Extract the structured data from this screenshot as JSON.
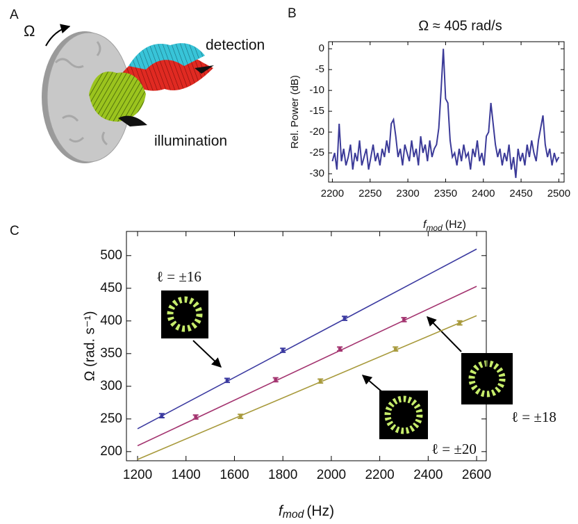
{
  "panel_a": {
    "label": "A",
    "omega": "Ω",
    "detection": "detection",
    "illumination": "illumination"
  },
  "chart_data": [
    {
      "type": "line",
      "panel": "B",
      "title": "Ω ≈ 405 rad/s",
      "ylabel": "Rel. Power (dB)",
      "xlabel": {
        "symbol": "f",
        "subscript": "mod",
        "unit": "(Hz)"
      },
      "color": "#3b3a98",
      "x": [
        2200,
        2203,
        2206,
        2209,
        2212,
        2215,
        2218,
        2221,
        2224,
        2227,
        2230,
        2233,
        2236,
        2239,
        2242,
        2245,
        2248,
        2251,
        2254,
        2257,
        2260,
        2263,
        2266,
        2269,
        2272,
        2275,
        2278,
        2281,
        2284,
        2287,
        2290,
        2293,
        2296,
        2299,
        2302,
        2305,
        2308,
        2311,
        2314,
        2317,
        2320,
        2323,
        2326,
        2329,
        2332,
        2335,
        2338,
        2341,
        2344,
        2347,
        2350,
        2353,
        2356,
        2359,
        2362,
        2365,
        2368,
        2371,
        2374,
        2377,
        2380,
        2383,
        2386,
        2389,
        2392,
        2395,
        2398,
        2401,
        2404,
        2407,
        2410,
        2413,
        2416,
        2419,
        2422,
        2425,
        2428,
        2431,
        2434,
        2437,
        2440,
        2443,
        2446,
        2449,
        2452,
        2455,
        2458,
        2461,
        2464,
        2467,
        2470,
        2473,
        2476,
        2479,
        2482,
        2485,
        2488,
        2491,
        2494,
        2497,
        2500
      ],
      "values": [
        -27,
        -25,
        -29,
        -18,
        -27,
        -24,
        -28,
        -26,
        -23,
        -29,
        -25,
        -27,
        -22,
        -28,
        -26,
        -24,
        -29,
        -26,
        -23,
        -27,
        -25,
        -28,
        -24,
        -26,
        -22,
        -25,
        -18,
        -17,
        -21,
        -26,
        -24,
        -28,
        -23,
        -25,
        -27,
        -22,
        -26,
        -24,
        -28,
        -21,
        -25,
        -23,
        -27,
        -22,
        -26,
        -24,
        -23,
        -19,
        -10,
        0,
        -12,
        -13,
        -22,
        -26,
        -25,
        -28,
        -24,
        -27,
        -23,
        -26,
        -25,
        -29,
        -24,
        -26,
        -22,
        -27,
        -25,
        -28,
        -21,
        -20,
        -13,
        -18,
        -23,
        -26,
        -24,
        -28,
        -25,
        -27,
        -23,
        -29,
        -26,
        -31,
        -24,
        -27,
        -25,
        -28,
        -23,
        -26,
        -22,
        -25,
        -27,
        -22,
        -19,
        -16,
        -23,
        -26,
        -24,
        -28,
        -25,
        -27,
        -26
      ],
      "xlim": [
        2195,
        2507
      ],
      "ylim": [
        -32,
        1.7
      ],
      "xticks": [
        2200,
        2250,
        2300,
        2350,
        2400,
        2450,
        2500
      ],
      "yticks": [
        0,
        -5,
        -10,
        -15,
        -20,
        -25,
        -30
      ]
    },
    {
      "type": "scatter",
      "panel": "C",
      "ylabel": "Ω (rad. s⁻¹)",
      "xlabel": {
        "symbol": "f",
        "subscript": "mod",
        "unit": "(Hz)"
      },
      "series": [
        {
          "name": "ℓ = ±16",
          "color": "#3b3aa0",
          "x": [
            1300,
            1570,
            1800,
            2055
          ],
          "values": [
            255,
            309,
            355,
            404
          ],
          "errors": [
            3,
            3,
            3,
            3
          ],
          "fit_x": [
            1200,
            2600
          ],
          "fit_values": [
            235,
            510
          ]
        },
        {
          "name": "ℓ = ±18",
          "color": "#a3336f",
          "x": [
            1440,
            1770,
            2035,
            2300
          ],
          "values": [
            253,
            310,
            357,
            402
          ],
          "errors": [
            3,
            3,
            3,
            3
          ],
          "fit_x": [
            1200,
            2600
          ],
          "fit_values": [
            209,
            453
          ]
        },
        {
          "name": "ℓ = ±20",
          "color": "#a89a3c",
          "x": [
            1625,
            1955,
            2265,
            2530
          ],
          "values": [
            254,
            308,
            357,
            397
          ],
          "errors": [
            3,
            3,
            3,
            3
          ],
          "fit_x": [
            1200,
            2600
          ],
          "fit_values": [
            188,
            408
          ]
        }
      ],
      "xlim": [
        1154,
        2640
      ],
      "ylim": [
        186,
        537
      ],
      "xticks": [
        1200,
        1400,
        1600,
        1800,
        2000,
        2200,
        2400,
        2600
      ],
      "yticks": [
        200,
        250,
        300,
        350,
        400,
        450,
        500
      ]
    }
  ]
}
